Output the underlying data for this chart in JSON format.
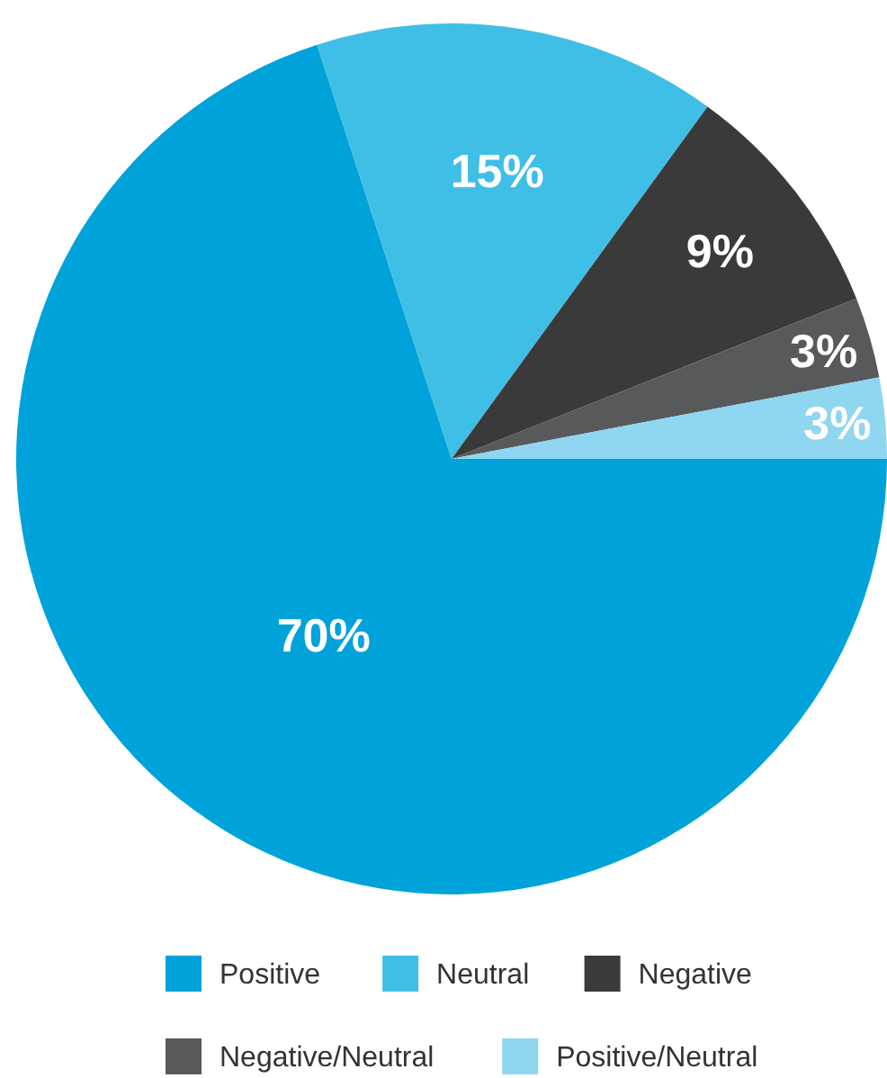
{
  "chart_data": {
    "type": "pie",
    "categories": [
      "Positive",
      "Neutral",
      "Negative",
      "Negative/Neutral",
      "Positive/Neutral"
    ],
    "values": [
      70,
      15,
      9,
      3,
      3
    ],
    "colors": [
      "#00a3d9",
      "#40bfe6",
      "#3a3a3a",
      "#58595b",
      "#8fd6f0"
    ],
    "value_labels": [
      "70%",
      "15%",
      "9%",
      "3%",
      "3%"
    ],
    "legend": "bottom"
  }
}
